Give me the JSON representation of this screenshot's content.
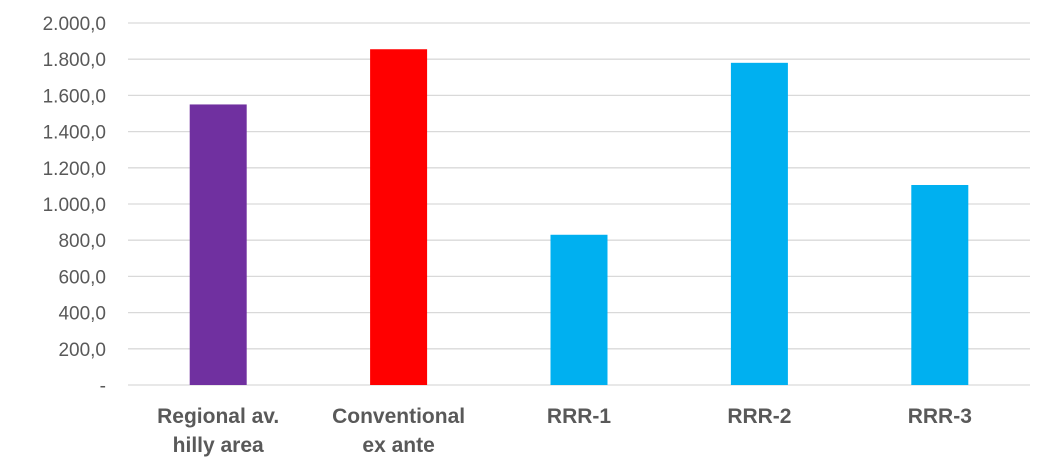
{
  "chart_data": {
    "type": "bar",
    "title": "",
    "xlabel": "",
    "ylabel": "",
    "ylim": [
      0,
      2000
    ],
    "y_ticks": [
      {
        "value": 0,
        "label": "-"
      },
      {
        "value": 200,
        "label": "200,0"
      },
      {
        "value": 400,
        "label": "400,0"
      },
      {
        "value": 600,
        "label": "600,0"
      },
      {
        "value": 800,
        "label": "800,0"
      },
      {
        "value": 1000,
        "label": "1.000,0"
      },
      {
        "value": 1200,
        "label": "1.200,0"
      },
      {
        "value": 1400,
        "label": "1.400,0"
      },
      {
        "value": 1600,
        "label": "1.600,0"
      },
      {
        "value": 1800,
        "label": "1.800,0"
      },
      {
        "value": 2000,
        "label": "2.000,0"
      }
    ],
    "grid": true,
    "legend": "none",
    "categories": [
      {
        "lines": [
          "Regional av.",
          "hilly area"
        ],
        "value": 1550,
        "color": "#7030a0"
      },
      {
        "lines": [
          "Conventional",
          "ex ante"
        ],
        "value": 1855,
        "color": "#ff0000"
      },
      {
        "lines": [
          "RRR-1"
        ],
        "value": 830,
        "color": "#00b0f0"
      },
      {
        "lines": [
          "RRR-2"
        ],
        "value": 1780,
        "color": "#00b0f0"
      },
      {
        "lines": [
          "RRR-3"
        ],
        "value": 1105,
        "color": "#00b0f0"
      }
    ]
  }
}
